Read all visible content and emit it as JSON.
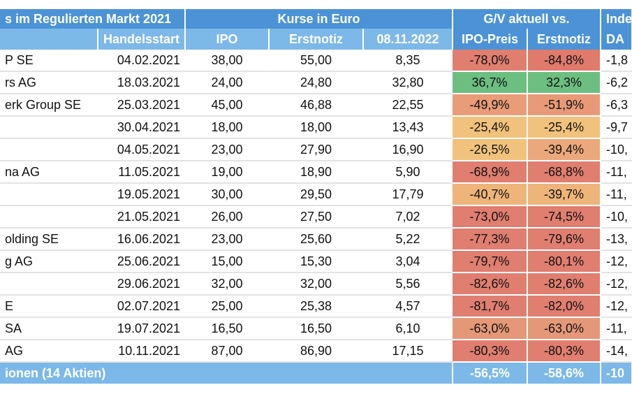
{
  "header": {
    "title": "s im Regulierten Markt 2021",
    "kurse": "Kurse in Euro",
    "gv": "G/V aktuell vs.",
    "index": "Inde",
    "cols": [
      "",
      "Handelsstart",
      "IPO",
      "Erstnotiz",
      "08.11.2022",
      "IPO-Preis",
      "Erstnotiz",
      "DA"
    ]
  },
  "rows": [
    [
      "P SE",
      "04.02.2021",
      "38,00",
      "55,00",
      "8,35",
      "-78,0%",
      "-84,8%",
      "-1,8"
    ],
    [
      "rs AG",
      "18.03.2021",
      "24,00",
      "24,80",
      "32,80",
      "36,7%",
      "32,3%",
      "-6,2"
    ],
    [
      "erk Group SE",
      "25.03.2021",
      "45,00",
      "46,88",
      "22,55",
      "-49,9%",
      "-51,9%",
      "-6,3"
    ],
    [
      "",
      "30.04.2021",
      "18,00",
      "18,00",
      "13,43",
      "-25,4%",
      "-25,4%",
      "-9,7"
    ],
    [
      "",
      "04.05.2021",
      "23,00",
      "27,90",
      "16,90",
      "-26,5%",
      "-39,4%",
      "-10,"
    ],
    [
      "na AG",
      "11.05.2021",
      "19,00",
      "18,90",
      "5,90",
      "-68,9%",
      "-68,8%",
      "-11,"
    ],
    [
      "",
      "19.05.2021",
      "30,00",
      "29,50",
      "17,79",
      "-40,7%",
      "-39,7%",
      "-11,"
    ],
    [
      "",
      "21.05.2021",
      "26,00",
      "27,50",
      "7,02",
      "-73,0%",
      "-74,5%",
      "-10,"
    ],
    [
      "olding SE",
      "16.06.2021",
      "23,00",
      "25,60",
      "5,22",
      "-77,3%",
      "-79,6%",
      "-13,"
    ],
    [
      "g AG",
      "25.06.2021",
      "15,00",
      "15,30",
      "3,04",
      "-79,7%",
      "-80,1%",
      "-12,"
    ],
    [
      "",
      "29.06.2021",
      "32,00",
      "32,00",
      "5,56",
      "-82,6%",
      "-82,6%",
      "-12,"
    ],
    [
      "E",
      "02.07.2021",
      "25,00",
      "25,38",
      "4,57",
      "-81,7%",
      "-82,0%",
      "-12,"
    ],
    [
      "SA",
      "19.07.2021",
      "16,50",
      "16,50",
      "6,10",
      "-63,0%",
      "-63,0%",
      "-11,"
    ],
    [
      "AG",
      "10.11.2021",
      "87,00",
      "86,90",
      "17,15",
      "-80,3%",
      "-80,3%",
      "-14,"
    ]
  ],
  "colors": [
    [
      "#e07e70",
      "#e07a6c"
    ],
    [
      "#6cbf80",
      "#6cbf80"
    ],
    [
      "#e89c78",
      "#e89a78"
    ],
    [
      "#f1c27c",
      "#f1c27c"
    ],
    [
      "#f1c27c",
      "#eba87a"
    ],
    [
      "#e07e70",
      "#e07e70"
    ],
    [
      "#eeb47a",
      "#eeb47a"
    ],
    [
      "#e07e70",
      "#e07e70"
    ],
    [
      "#e07e70",
      "#e07e70"
    ],
    [
      "#e07e70",
      "#e07e70"
    ],
    [
      "#e07e70",
      "#e07e70"
    ],
    [
      "#e07e70",
      "#e07e70"
    ],
    [
      "#e49878",
      "#e49878"
    ],
    [
      "#e07e70",
      "#e07e70"
    ]
  ],
  "total": {
    "label": "ionen (14 Aktien)",
    "ipo": "-56,5%",
    "erst": "-58,6%",
    "dax": "-10"
  }
}
